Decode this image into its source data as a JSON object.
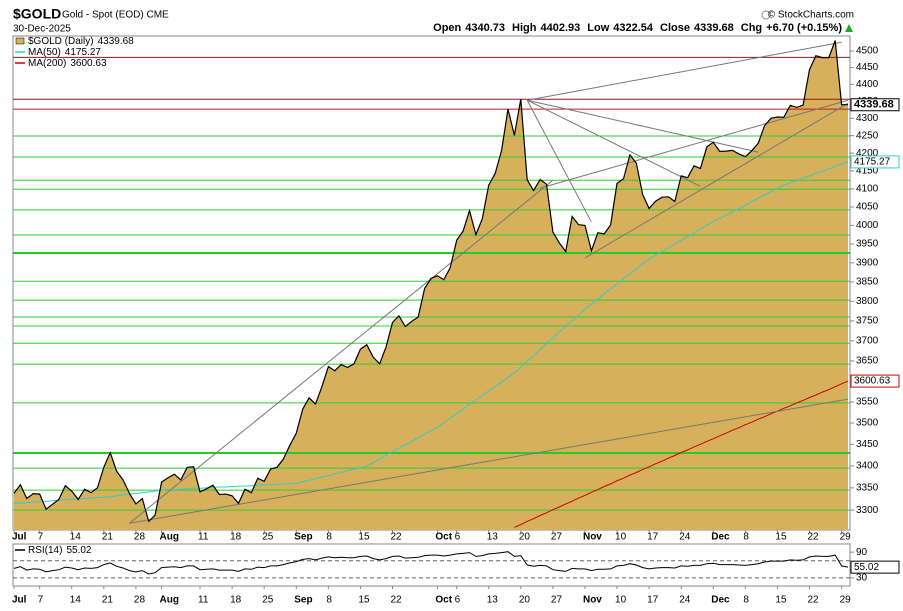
{
  "header": {
    "symbol": "$GOLD",
    "description": "Gold - Spot (EOD) CME",
    "date": "30-Dec-2025",
    "copyright": "© StockCharts.com",
    "quote": [
      {
        "label": "Open",
        "value": "4340.73"
      },
      {
        "label": "High",
        "value": "4402.93"
      },
      {
        "label": "Low",
        "value": "4322.54"
      },
      {
        "label": "Close",
        "value": "4339.68"
      },
      {
        "label": "Chg",
        "value": "+6.70 (+0.15%)"
      }
    ]
  },
  "chart_data": [
    {
      "type": "area",
      "log_scale": true,
      "categories": [
        "Jul",
        null,
        null,
        null,
        "7",
        null,
        null,
        null,
        null,
        "14",
        null,
        null,
        null,
        null,
        "21",
        null,
        null,
        null,
        null,
        "28",
        null,
        null,
        null,
        "Aug",
        null,
        null,
        null,
        null,
        null,
        "11",
        null,
        null,
        null,
        null,
        "18",
        null,
        null,
        null,
        null,
        "25",
        null,
        null,
        null,
        null,
        "Sep",
        null,
        null,
        null,
        null,
        "8",
        null,
        null,
        null,
        null,
        "15",
        null,
        null,
        null,
        null,
        "22",
        null,
        null,
        null,
        null,
        null,
        null,
        "Oct",
        null,
        null,
        "6",
        null,
        null,
        null,
        null,
        "13",
        null,
        null,
        null,
        null,
        "20",
        null,
        null,
        null,
        null,
        "27",
        null,
        null,
        null,
        null,
        "Nov",
        null,
        null,
        null,
        null,
        "10",
        null,
        null,
        null,
        null,
        "17",
        null,
        null,
        null,
        null,
        "24",
        null,
        null,
        null,
        null,
        "Dec",
        null,
        null,
        null,
        null,
        "8",
        null,
        null,
        null,
        null,
        "15",
        null,
        null,
        null,
        null,
        "22",
        null,
        null,
        null,
        null,
        "29",
        null
      ],
      "ylim": [
        3256,
        4546
      ],
      "yticks": [
        3300,
        3350,
        3400,
        3450,
        3500,
        3550,
        3600,
        3650,
        3700,
        3750,
        3800,
        3850,
        3900,
        3950,
        4000,
        4050,
        4100,
        4150,
        4200,
        4250,
        4300,
        4350,
        4400,
        4450,
        4500
      ],
      "series": [
        {
          "name": "$GOLD (Daily)",
          "color": "#d6b05a",
          "line_color": "#000000",
          "values": [
            3338,
            3357,
            3326,
            3337,
            3336,
            3302,
            3313,
            3324,
            3355,
            3343,
            3324,
            3347,
            3339,
            3350,
            3397,
            3431,
            3388,
            3368,
            3337,
            3314,
            3326,
            3275,
            3289,
            3363,
            3373,
            3381,
            3368,
            3397,
            3398,
            3341,
            3348,
            3356,
            3335,
            3336,
            3332,
            3315,
            3347,
            3339,
            3372,
            3365,
            3393,
            3397,
            3416,
            3448,
            3476,
            3533,
            3560,
            3545,
            3587,
            3636,
            3626,
            3641,
            3634,
            3643,
            3679,
            3690,
            3659,
            3643,
            3685,
            3746,
            3763,
            3736,
            3749,
            3760,
            3833,
            3859,
            3866,
            3856,
            3887,
            3960,
            3985,
            4040,
            3975,
            4018,
            4110,
            4143,
            4208,
            4327,
            4251,
            4356,
            4125,
            4095,
            4126,
            4113,
            3982,
            3953,
            3930,
            4024,
            4002,
            4000,
            3932,
            3980,
            3977,
            4001,
            4115,
            4128,
            4195,
            4172,
            4084,
            4046,
            4066,
            4077,
            4078,
            4065,
            4136,
            4131,
            4164,
            4157,
            4218,
            4231,
            4205,
            4206,
            4208,
            4198,
            4190,
            4207,
            4228,
            4279,
            4300,
            4304,
            4303,
            4338,
            4332,
            4339,
            4444,
            4486,
            4480,
            4480,
            4532,
            4340,
            4339.68
          ]
        },
        {
          "name": "MA(50)",
          "color": "#33cccc",
          "values": [
            3315,
            3316,
            3317,
            3318,
            3319,
            3320,
            3321,
            3322,
            3323,
            3324,
            3325,
            3326,
            3327,
            3328,
            3329,
            3330,
            3332,
            3334,
            3336,
            3338,
            3339,
            3341,
            3343,
            3345,
            3346,
            3346,
            3347,
            3348,
            3349,
            3349,
            3350,
            3351,
            3352,
            3352,
            3353,
            3354,
            3354,
            3355,
            3356,
            3357,
            3357,
            3358,
            3359,
            3359,
            3360,
            3364,
            3367,
            3371,
            3375,
            3378,
            3382,
            3385,
            3389,
            3393,
            3396,
            3400,
            3408,
            3416,
            3425,
            3433,
            3441,
            3449,
            3457,
            3466,
            3474,
            3482,
            3490,
            3501,
            3512,
            3522,
            3533,
            3544,
            3555,
            3566,
            3577,
            3588,
            3598,
            3609,
            3620,
            3635,
            3649,
            3664,
            3678,
            3693,
            3707,
            3722,
            3736,
            3751,
            3765,
            3780,
            3793,
            3806,
            3819,
            3832,
            3845,
            3858,
            3871,
            3884,
            3897,
            3910,
            3920,
            3930,
            3940,
            3950,
            3960,
            3970,
            3980,
            3990,
            4000,
            4010,
            4019,
            4028,
            4037,
            4046,
            4055,
            4065,
            4074,
            4083,
            4092,
            4101,
            4110,
            4117,
            4123,
            4130,
            4136,
            4143,
            4149,
            4156,
            4162,
            4169,
            4175.27
          ]
        },
        {
          "name": "MA(200)",
          "color": "#cc0000",
          "values": [
            null,
            null,
            null,
            null,
            null,
            null,
            null,
            null,
            null,
            null,
            null,
            null,
            null,
            null,
            null,
            null,
            null,
            null,
            null,
            null,
            null,
            null,
            null,
            null,
            null,
            null,
            null,
            null,
            null,
            null,
            null,
            null,
            null,
            null,
            null,
            null,
            null,
            null,
            null,
            null,
            null,
            null,
            null,
            null,
            null,
            null,
            null,
            null,
            null,
            null,
            null,
            null,
            null,
            null,
            null,
            null,
            null,
            null,
            null,
            null,
            null,
            null,
            null,
            null,
            null,
            null,
            null,
            null,
            null,
            null,
            null,
            null,
            null,
            null,
            null,
            null,
            null,
            null,
            3262,
            3268,
            3275,
            3281,
            3288,
            3294,
            3301,
            3307,
            3314,
            3320,
            3327,
            3333,
            3340,
            3346,
            3353,
            3359,
            3366,
            3372,
            3379,
            3385,
            3392,
            3398,
            3405,
            3411,
            3418,
            3424,
            3431,
            3437,
            3444,
            3450,
            3457,
            3463,
            3470,
            3476,
            3483,
            3489,
            3496,
            3502,
            3509,
            3515,
            3522,
            3528,
            3535,
            3541,
            3548,
            3554,
            3561,
            3567,
            3574,
            3580,
            3587,
            3594,
            3600.63
          ]
        }
      ],
      "levels": [
        {
          "value": 4481,
          "color": "#8b1a1a",
          "width": 1
        },
        {
          "value": 4356,
          "color": "#8b1a1a",
          "width": 1
        },
        {
          "value": 4327,
          "color": "#b22222",
          "width": 1
        },
        {
          "value": 4249,
          "color": "#33cc33",
          "width": 1
        },
        {
          "value": 4189,
          "color": "#33cc33",
          "width": 1
        },
        {
          "value": 4124,
          "color": "#33cc33",
          "width": 1
        },
        {
          "value": 4099,
          "color": "#33cc33",
          "width": 1
        },
        {
          "value": 4042,
          "color": "#33cc33",
          "width": 1
        },
        {
          "value": 3974,
          "color": "#33cc33",
          "width": 1
        },
        {
          "value": 3926,
          "color": "#22cc22",
          "width": 2
        },
        {
          "value": 3852,
          "color": "#33cc33",
          "width": 1
        },
        {
          "value": 3803,
          "color": "#33cc33",
          "width": 1
        },
        {
          "value": 3760,
          "color": "#33cc33",
          "width": 1
        },
        {
          "value": 3737,
          "color": "#33cc33",
          "width": 1
        },
        {
          "value": 3694,
          "color": "#33cc33",
          "width": 1
        },
        {
          "value": 3642,
          "color": "#33cc33",
          "width": 1
        },
        {
          "value": 3548,
          "color": "#33cc33",
          "width": 1
        },
        {
          "value": 3430,
          "color": "#22cc22",
          "width": 2
        },
        {
          "value": 3395,
          "color": "#33cc33",
          "width": 1
        },
        {
          "value": 3345,
          "color": "#33cc33",
          "width": 1
        },
        {
          "value": 3300,
          "color": "#33cc33",
          "width": 1
        }
      ],
      "trendlines": [
        {
          "x": [
            18,
            130
          ],
          "y": [
            3271,
            3557
          ],
          "color": "#777777"
        },
        {
          "x": [
            18,
            84
          ],
          "y": [
            3271,
            4124
          ],
          "color": "#777777"
        },
        {
          "x": [
            80,
            129
          ],
          "y": [
            4353,
            4527
          ],
          "color": "#777777"
        },
        {
          "x": [
            80,
            90
          ],
          "y": [
            4353,
            4009
          ],
          "color": "#777777"
        },
        {
          "x": [
            80,
            107
          ],
          "y": [
            4353,
            4107
          ],
          "color": "#777777"
        },
        {
          "x": [
            80,
            116
          ],
          "y": [
            4353,
            4203
          ],
          "color": "#777777"
        },
        {
          "x": [
            89,
            130
          ],
          "y": [
            3913,
            4344
          ],
          "color": "#777777"
        },
        {
          "x": [
            82,
            130
          ],
          "y": [
            4102,
            4353
          ],
          "color": "#777777"
        }
      ]
    },
    {
      "type": "line",
      "ylim": [
        18,
        102
      ],
      "yticks": [
        30,
        90
      ],
      "series": [
        {
          "name": "RSI(14)",
          "color": "#000000",
          "values": [
            52,
            56,
            48,
            51,
            50,
            44,
            47,
            49,
            55,
            53,
            49,
            53,
            52,
            54,
            61,
            65,
            57,
            53,
            47,
            44,
            47,
            39,
            42,
            54,
            55,
            56,
            54,
            58,
            58,
            49,
            50,
            51,
            48,
            48,
            48,
            45,
            51,
            50,
            55,
            54,
            58,
            58,
            61,
            65,
            68,
            73,
            75,
            72,
            76,
            79,
            77,
            78,
            77,
            77,
            80,
            81,
            75,
            72,
            75,
            80,
            81,
            76,
            77,
            78,
            82,
            83,
            83,
            81,
            83,
            86,
            87,
            89,
            80,
            82,
            86,
            87,
            89,
            91,
            80,
            82,
            60,
            57,
            59,
            58,
            49,
            47,
            45,
            52,
            51,
            51,
            47,
            50,
            50,
            51,
            58,
            59,
            63,
            60,
            54,
            51,
            53,
            54,
            54,
            53,
            58,
            57,
            59,
            59,
            63,
            64,
            61,
            61,
            61,
            60,
            59,
            61,
            63,
            67,
            69,
            69,
            69,
            72,
            71,
            72,
            79,
            81,
            80,
            80,
            83,
            58,
            55.02
          ]
        }
      ],
      "levels": [
        {
          "value": 70,
          "color": "#666666",
          "width": 1
        },
        {
          "value": 30,
          "color": "#666666",
          "width": 1
        }
      ]
    }
  ]
}
